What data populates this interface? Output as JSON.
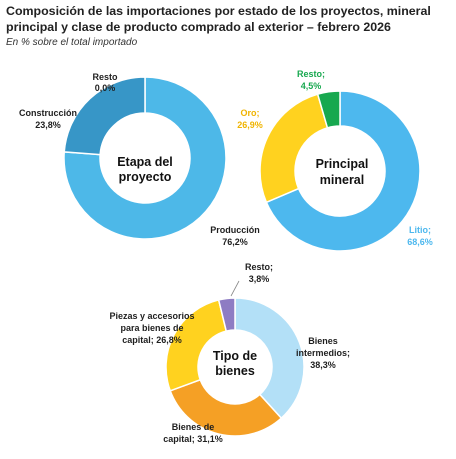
{
  "header": {
    "title_line1": "Composición de las importaciones por estado de los proyectos, mineral",
    "title_line2": "principal y clase de producto comprado al exterior – febrero 2026",
    "subtitle": "En % sobre el total importado"
  },
  "chart_data": [
    {
      "type": "pie",
      "title": "Etapa del proyecto",
      "center_label": [
        "Etapa del",
        "proyecto"
      ],
      "categories": [
        "Producción",
        "Construcción",
        "Resto"
      ],
      "values": [
        76.2,
        23.8,
        0.0
      ],
      "value_labels": [
        "76,2%",
        "23,8%",
        "0,0%"
      ],
      "colors": [
        "#4db8e8",
        "#3796c7",
        "#9fd3ee"
      ],
      "label_color": "#1f1f1f"
    },
    {
      "type": "pie",
      "title": "Principal mineral",
      "center_label": [
        "Principal",
        "mineral"
      ],
      "categories": [
        "Litio",
        "Oro",
        "Resto"
      ],
      "values": [
        68.6,
        26.9,
        4.5
      ],
      "value_labels": [
        "68,6%",
        "26,9%",
        "4,5%"
      ],
      "colors": [
        "#4db8ee",
        "#ffd21f",
        "#17a84f"
      ],
      "label_colors": [
        "#4db8ee",
        "#f0b400",
        "#17a84f"
      ]
    },
    {
      "type": "pie",
      "title": "Tipo de bienes",
      "center_label": [
        "Tipo de",
        "bienes"
      ],
      "categories": [
        "Bienes intermedios",
        "Bienes de capital",
        "Piezas y accesorios para bienes de capital",
        "Resto"
      ],
      "values": [
        38.3,
        31.1,
        26.8,
        3.8
      ],
      "value_labels": [
        "38,3%",
        "31,1%",
        "26,8%",
        "3,8%"
      ],
      "colors": [
        "#b3e0f7",
        "#f5a025",
        "#ffd21f",
        "#8e7cc3"
      ],
      "label_color": "#1f1f1f"
    }
  ],
  "labels": {
    "c1_resto": [
      "Resto",
      "0,0%"
    ],
    "c1_construccion": [
      "Construcción",
      "23,8%"
    ],
    "c1_produccion": [
      "Producción",
      "76,2%"
    ],
    "c2_resto": [
      "Resto;",
      "4,5%"
    ],
    "c2_oro": [
      "Oro;",
      "26,9%"
    ],
    "c2_litio": [
      "Litio;",
      "68,6%"
    ],
    "c3_resto": [
      "Resto;",
      "3,8%"
    ],
    "c3_piezas": [
      "Piezas y accesorios",
      "para bienes de",
      "capital; 26,8%"
    ],
    "c3_intermedios": [
      "Bienes",
      "intermedios;",
      "38,3%"
    ],
    "c3_capital": [
      "Bienes de",
      "capital; 31,1%"
    ]
  }
}
